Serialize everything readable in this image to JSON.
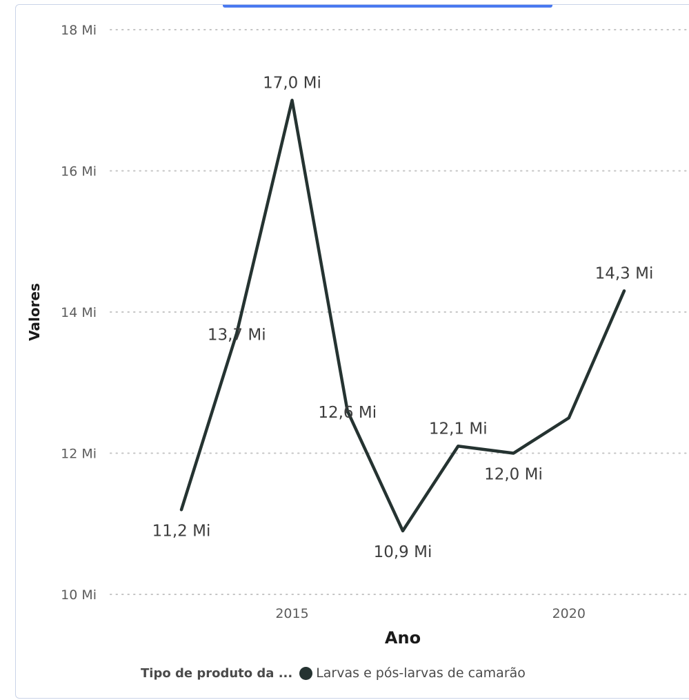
{
  "chart_data": {
    "type": "line",
    "x": [
      2013,
      2014,
      2015,
      2016,
      2017,
      2018,
      2019,
      2020,
      2021
    ],
    "series": [
      {
        "name": "Larvas e pós-larvas de camarão",
        "values": [
          11.2,
          13.7,
          17.0,
          12.6,
          10.9,
          12.1,
          12.0,
          12.5,
          14.3
        ],
        "data_labels": [
          "11,2 Mi",
          "13,7 Mi",
          "17,0 Mi",
          "12,6 Mi",
          "10,9 Mi",
          "12,1 Mi",
          "12,0 Mi",
          "",
          "14,3 Mi"
        ],
        "color": "#253331"
      }
    ],
    "xlabel": "Ano",
    "ylabel": "Valores",
    "x_ticks": [
      "2015",
      "2020"
    ],
    "y_ticks": [
      "10 Mi",
      "12 Mi",
      "14 Mi",
      "16 Mi",
      "18 Mi"
    ],
    "ylim": [
      10,
      18
    ],
    "grid": true,
    "legend_title": "Tipo de produto da ...",
    "legend_position": "bottom"
  }
}
